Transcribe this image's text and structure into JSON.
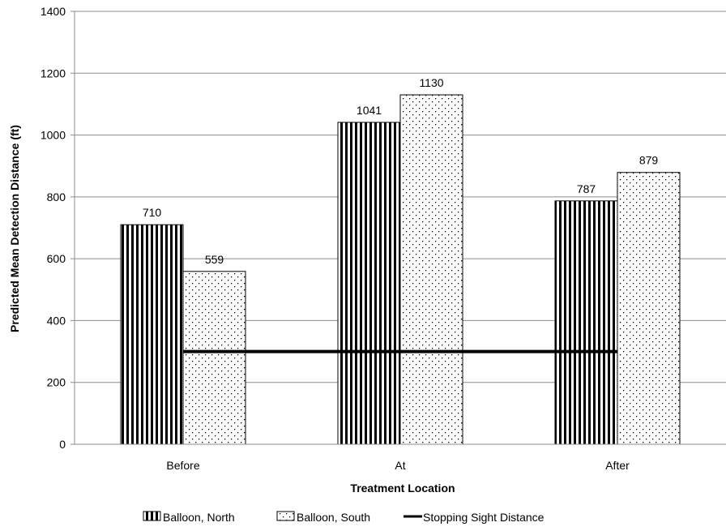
{
  "chart_data": {
    "type": "bar",
    "categories": [
      "Before",
      "At",
      "After"
    ],
    "series": [
      {
        "name": "Balloon, North",
        "values": [
          710,
          1041,
          787
        ],
        "pattern": "vertical-stripes"
      },
      {
        "name": "Balloon, South",
        "values": [
          559,
          1130,
          879
        ],
        "pattern": "dots"
      }
    ],
    "reference_line": {
      "name": "Stopping Sight Distance",
      "value": 300,
      "color": "#000000"
    },
    "xlabel": "Treatment Location",
    "ylabel": "Predicted Mean Detection Distance (ft)",
    "ylim": [
      0,
      1400
    ],
    "yticks": [
      0,
      200,
      400,
      600,
      800,
      1000,
      1200,
      1400
    ],
    "grid": true,
    "legend_position": "bottom"
  }
}
